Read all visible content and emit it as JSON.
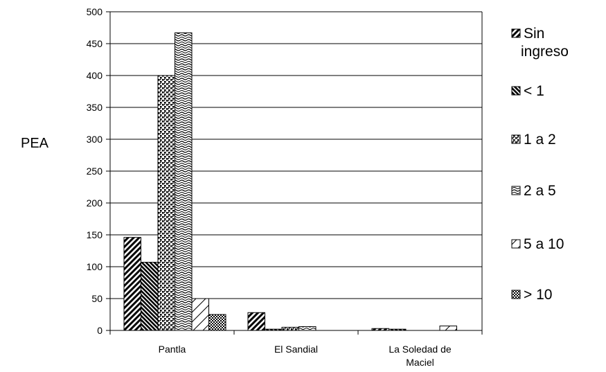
{
  "chart_data": {
    "type": "bar",
    "title": "",
    "ylabel": "PEA",
    "xlabel": "",
    "ylim": [
      0,
      500
    ],
    "yticks": [
      0,
      50,
      100,
      150,
      200,
      250,
      300,
      350,
      400,
      450,
      500
    ],
    "grid": "horizontal",
    "legend_position": "right",
    "categories": [
      "Pantla",
      "El Sandial",
      "La Soledad de Maciel"
    ],
    "series": [
      {
        "name": "Sin ingreso",
        "pattern": "wide-diagonal-up",
        "values": [
          146,
          28,
          3
        ]
      },
      {
        "name": "< 1",
        "pattern": "dark-diagonal-down",
        "values": [
          107,
          2,
          2
        ]
      },
      {
        "name": "1 a 2",
        "pattern": "dotted",
        "values": [
          400,
          5,
          0
        ]
      },
      {
        "name": "2 a 5",
        "pattern": "wave",
        "values": [
          467,
          6,
          0
        ]
      },
      {
        "name": "5 a 10",
        "pattern": "light-diagonal",
        "values": [
          50,
          0,
          7
        ]
      },
      {
        "name": "> 10",
        "pattern": "checker",
        "values": [
          25,
          0,
          0
        ]
      }
    ]
  }
}
